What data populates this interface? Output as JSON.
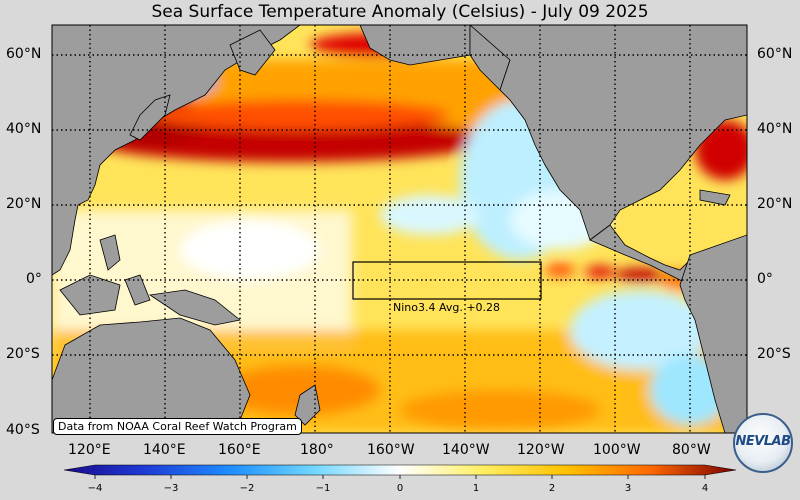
{
  "title": "Sea Surface Temperature Anomaly (Celsius) - July 09 2025",
  "lat_labels": [
    "60°N",
    "40°N",
    "20°N",
    "0°",
    "20°S",
    "40°S"
  ],
  "lon_labels": [
    "120°E",
    "140°E",
    "160°E",
    "180°",
    "160°W",
    "140°W",
    "120°W",
    "100°W",
    "80°W"
  ],
  "credit": "Data from NOAA Coral Reef Watch Program",
  "nino_label": "Nino3.4 Avg. +0.28",
  "colorbar": {
    "ticks": [
      "−4",
      "−3",
      "−2",
      "−1",
      "0",
      "1",
      "2",
      "3",
      "4"
    ],
    "colors": [
      "#1a0a8c",
      "#1f3bd6",
      "#1f8fff",
      "#6fd6ff",
      "#ffffff",
      "#fff066",
      "#ffc000",
      "#ff6a00",
      "#cc0000",
      "#7a0000"
    ]
  },
  "logo_text": "NEVLAB",
  "colors": {
    "land": "#9d9d9d",
    "background": "#d9d9d9"
  }
}
